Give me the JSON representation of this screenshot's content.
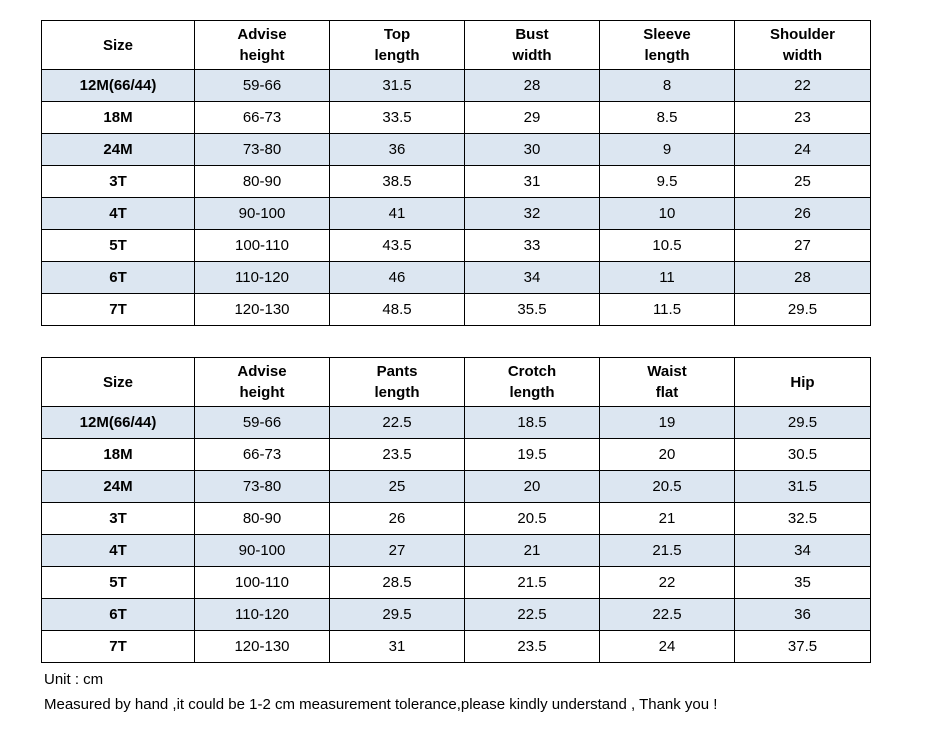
{
  "top_table": {
    "headers": [
      [
        "Size"
      ],
      [
        "Advise",
        "height"
      ],
      [
        "Top",
        "length"
      ],
      [
        "Bust",
        "width"
      ],
      [
        "Sleeve",
        "length"
      ],
      [
        "Shoulder",
        "width"
      ]
    ],
    "rows": [
      [
        "12M(66/44)",
        "59-66",
        "31.5",
        "28",
        "8",
        "22"
      ],
      [
        "18M",
        "66-73",
        "33.5",
        "29",
        "8.5",
        "23"
      ],
      [
        "24M",
        "73-80",
        "36",
        "30",
        "9",
        "24"
      ],
      [
        "3T",
        "80-90",
        "38.5",
        "31",
        "9.5",
        "25"
      ],
      [
        "4T",
        "90-100",
        "41",
        "32",
        "10",
        "26"
      ],
      [
        "5T",
        "100-110",
        "43.5",
        "33",
        "10.5",
        "27"
      ],
      [
        "6T",
        "110-120",
        "46",
        "34",
        "11",
        "28"
      ],
      [
        "7T",
        "120-130",
        "48.5",
        "35.5",
        "11.5",
        "29.5"
      ]
    ]
  },
  "bottom_table": {
    "headers": [
      [
        "Size"
      ],
      [
        "Advise",
        "height"
      ],
      [
        "Pants",
        "length"
      ],
      [
        "Crotch",
        "length"
      ],
      [
        "Waist",
        "flat"
      ],
      [
        "Hip"
      ]
    ],
    "rows": [
      [
        "12M(66/44)",
        "59-66",
        "22.5",
        "18.5",
        "19",
        "29.5"
      ],
      [
        "18M",
        "66-73",
        "23.5",
        "19.5",
        "20",
        "30.5"
      ],
      [
        "24M",
        "73-80",
        "25",
        "20",
        "20.5",
        "31.5"
      ],
      [
        "3T",
        "80-90",
        "26",
        "20.5",
        "21",
        "32.5"
      ],
      [
        "4T",
        "90-100",
        "27",
        "21",
        "21.5",
        "34"
      ],
      [
        "5T",
        "100-110",
        "28.5",
        "21.5",
        "22",
        "35"
      ],
      [
        "6T",
        "110-120",
        "29.5",
        "22.5",
        "22.5",
        "36"
      ],
      [
        "7T",
        "120-130",
        "31",
        "23.5",
        "24",
        "37.5"
      ]
    ]
  },
  "notes": {
    "unit": "Unit : cm",
    "tolerance": "Measured by hand ,it could be 1-2 cm measurement tolerance,please kindly understand , Thank you !"
  },
  "colors": {
    "stripe_row": "#dce6f1",
    "plain_row": "#ffffff",
    "border": "#000000"
  }
}
